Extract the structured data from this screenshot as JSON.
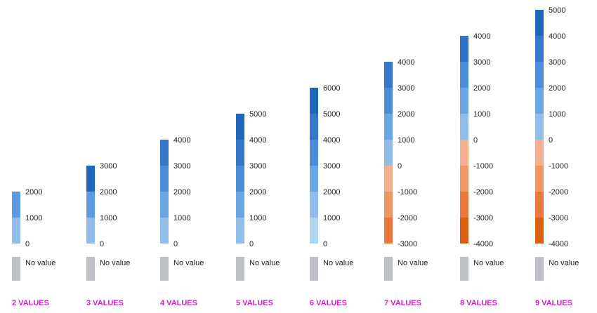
{
  "no_value_label": "No value",
  "no_value_color": "#bcc0c4",
  "legends": [
    {
      "title": "2 VALUES",
      "ticks": [
        "0",
        "1000",
        "2000"
      ],
      "colors": [
        "#92bdea",
        "#5c9be0"
      ]
    },
    {
      "title": "3 VALUES",
      "ticks": [
        "0",
        "1000",
        "2000",
        "3000"
      ],
      "colors": [
        "#92bdea",
        "#5c9be0",
        "#1f66bd"
      ]
    },
    {
      "title": "4 VALUES",
      "ticks": [
        "0",
        "1000",
        "2000",
        "3000",
        "4000"
      ],
      "colors": [
        "#92bdea",
        "#6aa6e3",
        "#4b8dd8",
        "#3478cc"
      ]
    },
    {
      "title": "5 VALUES",
      "ticks": [
        "0",
        "1000",
        "2000",
        "3000",
        "4000",
        "5000"
      ],
      "colors": [
        "#92bdea",
        "#6aa6e3",
        "#4b8dd8",
        "#3478cc",
        "#1f66bd"
      ]
    },
    {
      "title": "6 VALUES",
      "ticks": [
        "0",
        "1000",
        "2000",
        "3000",
        "4000",
        "5000",
        "6000"
      ],
      "colors": [
        "#b4d4f4",
        "#92bdea",
        "#6aa6e3",
        "#4b8dd8",
        "#3478cc",
        "#1f66bd"
      ]
    },
    {
      "title": "7 VALUES",
      "ticks": [
        "-3000",
        "-2000",
        "-1000",
        "0",
        "1000",
        "2000",
        "3000",
        "4000"
      ],
      "colors": [
        "#e8783d",
        "#ef9762",
        "#f4b08e",
        "#92bdea",
        "#6aa6e3",
        "#4b8dd8",
        "#3478cc"
      ]
    },
    {
      "title": "8 VALUES",
      "ticks": [
        "-4000",
        "-3000",
        "-2000",
        "-1000",
        "0",
        "1000",
        "2000",
        "3000",
        "4000"
      ],
      "colors": [
        "#db6011",
        "#e8783d",
        "#ef9762",
        "#f4b08e",
        "#92bdea",
        "#6aa6e3",
        "#4b8dd8",
        "#2f74c8"
      ]
    },
    {
      "title": "9 VALUES",
      "ticks": [
        "-4000",
        "-3000",
        "-2000",
        "-1000",
        "0",
        "1000",
        "2000",
        "3000",
        "4000",
        "5000"
      ],
      "colors": [
        "#db6011",
        "#e8783d",
        "#ef9762",
        "#f4b08e",
        "#92bdea",
        "#6aa6e3",
        "#4b8dd8",
        "#3478cc",
        "#1f66bd"
      ]
    }
  ]
}
